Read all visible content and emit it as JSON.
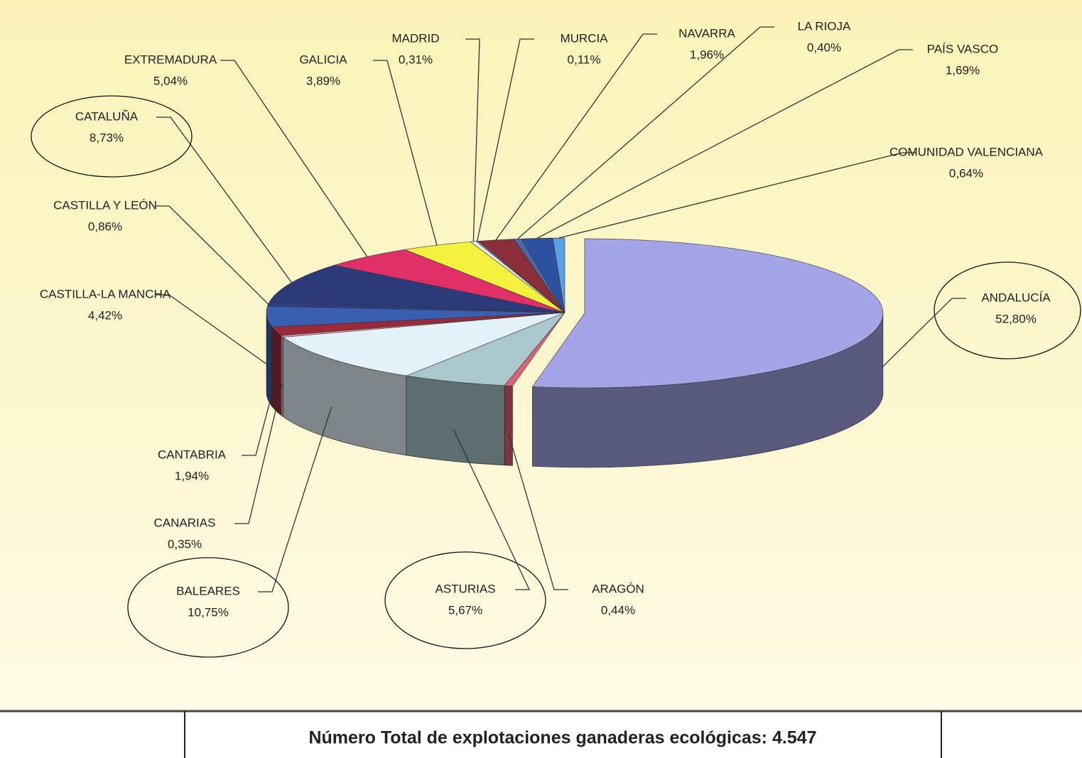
{
  "chart_data": {
    "type": "pie3d",
    "categories": [
      "ANDALUCÍA",
      "ARAGÓN",
      "ASTURIAS",
      "BALEARES",
      "CANARIAS",
      "CANTABRIA",
      "CASTILLA-LA MANCHA",
      "CASTILLA Y LEÓN",
      "CATALUÑA",
      "EXTREMADURA",
      "GALICIA",
      "MADRID",
      "MURCIA",
      "NAVARRA",
      "LA RIOJA",
      "PAÍS VASCO",
      "COMUNIDAD VALENCIANA"
    ],
    "values": [
      52.8,
      0.44,
      5.67,
      10.75,
      0.35,
      1.94,
      4.42,
      0.86,
      8.73,
      5.04,
      3.89,
      0.31,
      0.11,
      1.96,
      0.4,
      1.69,
      0.64
    ],
    "value_labels": [
      "52,80%",
      "0,44%",
      "5,67%",
      "10,75%",
      "0,35%",
      "1,94%",
      "4,42%",
      "0,86%",
      "8,73%",
      "5,04%",
      "3,89%",
      "0,31%",
      "0,11%",
      "1,96%",
      "0,40%",
      "1,69%",
      "0,64%"
    ],
    "colors": [
      "#a4a4e6",
      "#e0607a",
      "#a9c7cc",
      "#e4f1f8",
      "#f2a6b6",
      "#9a2a3a",
      "#3a5eb0",
      "#2a3f88",
      "#2c3a7a",
      "#e0306a",
      "#f4f040",
      "#f4f4f4",
      "#8aa0c8",
      "#8a2e3a",
      "#4a68a8",
      "#3050a0",
      "#58a0e0"
    ],
    "footer": "Número Total de explotaciones ganaderas ecológicas: 4.547"
  }
}
